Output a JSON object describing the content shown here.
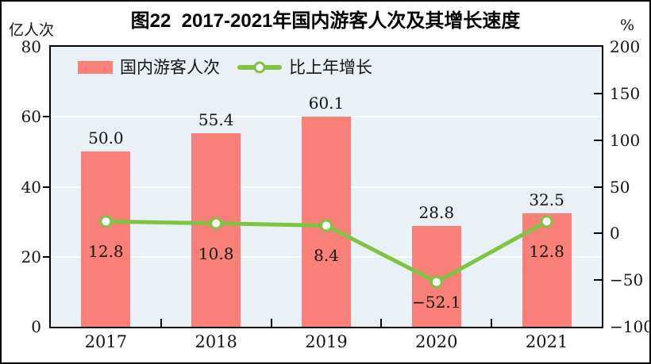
{
  "chart_data": {
    "type": "bar+line",
    "title": "图22  2017-2021年国内游客人次及其增长速度",
    "categories": [
      "2017",
      "2018",
      "2019",
      "2020",
      "2021"
    ],
    "series": [
      {
        "name": "国内游客人次",
        "type": "bar",
        "axis": "left",
        "color": "#F98078",
        "values": [
          50.0,
          55.4,
          60.1,
          28.8,
          32.5
        ],
        "labels": [
          "50.0",
          "55.4",
          "60.1",
          "28.8",
          "32.5"
        ]
      },
      {
        "name": "比上年增长",
        "type": "line",
        "axis": "right",
        "color": "#7EC342",
        "marker": "open-circle",
        "values": [
          12.8,
          10.8,
          8.4,
          -52.1,
          12.8
        ],
        "labels": [
          "12.8",
          "10.8",
          "8.4",
          "−52.1",
          "12.8"
        ]
      }
    ],
    "left_axis": {
      "unit": "亿人次",
      "min": 0,
      "max": 80,
      "ticks": [
        0,
        20,
        40,
        60,
        80
      ],
      "tick_labels": [
        "0",
        "20",
        "40",
        "60",
        "80"
      ]
    },
    "right_axis": {
      "unit": "%",
      "min": -100,
      "max": 200,
      "ticks": [
        -100,
        -50,
        0,
        50,
        100,
        150,
        200
      ],
      "tick_labels": [
        "−100",
        "−50",
        "0",
        "50",
        "100",
        "150",
        "200"
      ]
    },
    "gridlines_at_left_values": [
      20,
      40,
      60
    ],
    "plot_background": "#E9F1F6",
    "gridline_color": "#FFFFFF",
    "axis_color": "#000000",
    "legend_position": "top-left",
    "grid": true
  }
}
